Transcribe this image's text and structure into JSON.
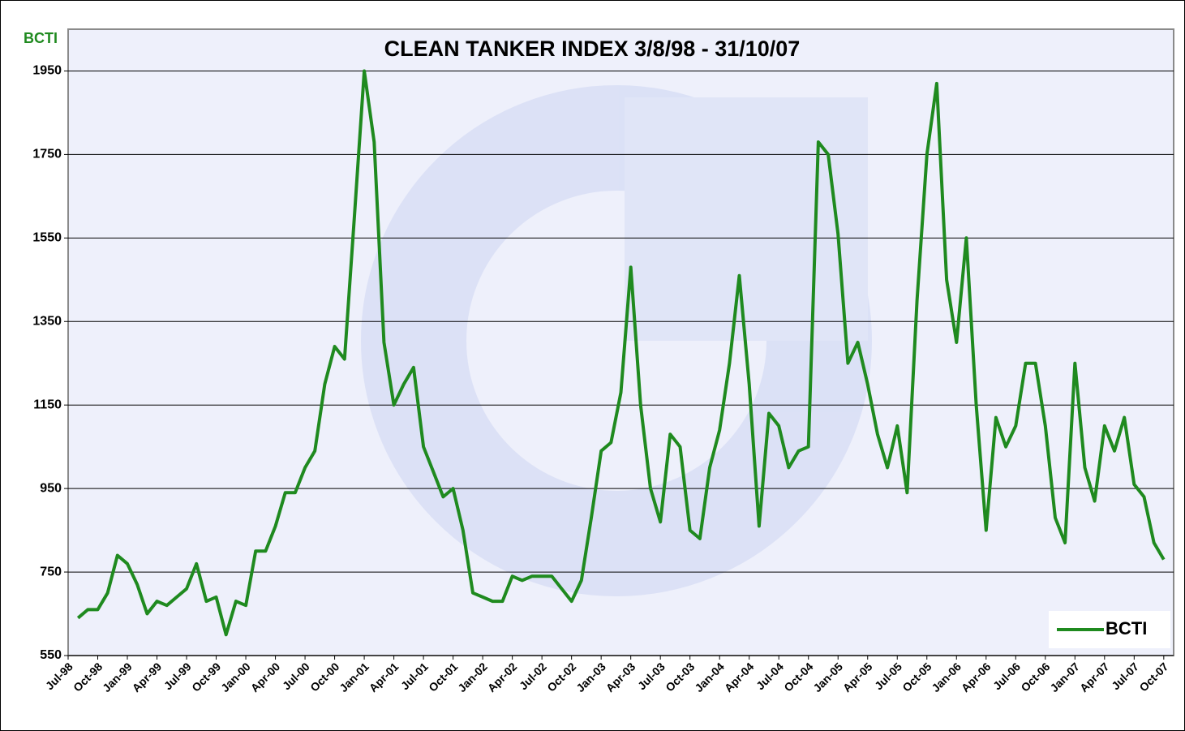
{
  "chart_data": {
    "type": "line",
    "title": "CLEAN TANKER INDEX 3/8/98 - 31/10/07",
    "ylabel": "BCTI",
    "x": [
      "Aug-98",
      "Sep-98",
      "Oct-98",
      "Nov-98",
      "Dec-98",
      "Jan-99",
      "Feb-99",
      "Mar-99",
      "Apr-99",
      "May-99",
      "Jun-99",
      "Jul-99",
      "Aug-99",
      "Sep-99",
      "Oct-99",
      "Nov-99",
      "Dec-99",
      "Jan-00",
      "Feb-00",
      "Mar-00",
      "Apr-00",
      "May-00",
      "Jun-00",
      "Jul-00",
      "Aug-00",
      "Sep-00",
      "Oct-00",
      "Nov-00",
      "Dec-00",
      "Jan-01",
      "Feb-01",
      "Mar-01",
      "Apr-01",
      "May-01",
      "Jun-01",
      "Jul-01",
      "Aug-01",
      "Sep-01",
      "Oct-01",
      "Nov-01",
      "Dec-01",
      "Jan-02",
      "Feb-02",
      "Mar-02",
      "Apr-02",
      "May-02",
      "Jun-02",
      "Jul-02",
      "Aug-02",
      "Sep-02",
      "Oct-02",
      "Nov-02",
      "Dec-02",
      "Jan-03",
      "Feb-03",
      "Mar-03",
      "Apr-03",
      "May-03",
      "Jun-03",
      "Jul-03",
      "Aug-03",
      "Sep-03",
      "Oct-03",
      "Nov-03",
      "Dec-03",
      "Jan-04",
      "Feb-04",
      "Mar-04",
      "Apr-04",
      "May-04",
      "Jun-04",
      "Jul-04",
      "Aug-04",
      "Sep-04",
      "Oct-04",
      "Nov-04",
      "Dec-04",
      "Jan-05",
      "Feb-05",
      "Mar-05",
      "Apr-05",
      "May-05",
      "Jun-05",
      "Jul-05",
      "Aug-05",
      "Sep-05",
      "Oct-05",
      "Nov-05",
      "Dec-05",
      "Jan-06",
      "Feb-06",
      "Mar-06",
      "Apr-06",
      "May-06",
      "Jun-06",
      "Jul-06",
      "Aug-06",
      "Sep-06",
      "Oct-06",
      "Nov-06",
      "Dec-06",
      "Jan-07",
      "Feb-07",
      "Mar-07",
      "Apr-07",
      "May-07",
      "Jun-07",
      "Jul-07",
      "Aug-07",
      "Sep-07",
      "Oct-07"
    ],
    "series": [
      {
        "name": "BCTI",
        "color": "#1f8a1f",
        "values": [
          640,
          660,
          660,
          700,
          790,
          770,
          720,
          650,
          680,
          670,
          690,
          710,
          770,
          680,
          690,
          600,
          680,
          670,
          800,
          800,
          860,
          940,
          940,
          1000,
          1040,
          1200,
          1290,
          1260,
          1600,
          1950,
          1780,
          1300,
          1150,
          1200,
          1240,
          1050,
          990,
          930,
          950,
          850,
          700,
          690,
          680,
          680,
          740,
          730,
          740,
          740,
          740,
          710,
          680,
          730,
          880,
          1040,
          1060,
          1180,
          1480,
          1150,
          950,
          870,
          1080,
          1050,
          850,
          830,
          1000,
          1090,
          1250,
          1460,
          1200,
          860,
          1130,
          1100,
          1000,
          1040,
          1050,
          1780,
          1750,
          1560,
          1250,
          1300,
          1200,
          1080,
          1000,
          1100,
          940,
          1400,
          1750,
          1920,
          1450,
          1300,
          1550,
          1150,
          850,
          1120,
          1050,
          1100,
          1250,
          1250,
          1100,
          880,
          820,
          1250,
          1000,
          920,
          1100,
          1040,
          1120,
          960,
          930,
          820,
          780
        ]
      }
    ],
    "xlim": [
      "Jul-98",
      "Nov-07"
    ],
    "xticks": [
      "Jul-98",
      "Oct-98",
      "Jan-99",
      "Apr-99",
      "Jul-99",
      "Oct-99",
      "Jan-00",
      "Apr-00",
      "Jul-00",
      "Oct-00",
      "Jan-01",
      "Apr-01",
      "Jul-01",
      "Oct-01",
      "Jan-02",
      "Apr-02",
      "Jul-02",
      "Oct-02",
      "Jan-03",
      "Apr-03",
      "Jul-03",
      "Oct-03",
      "Jan-04",
      "Apr-04",
      "Jul-04",
      "Oct-04",
      "Jan-05",
      "Apr-05",
      "Jul-05",
      "Oct-05",
      "Jan-06",
      "Apr-06",
      "Jul-06",
      "Oct-06",
      "Jan-07",
      "Apr-07",
      "Jul-07",
      "Oct-07"
    ],
    "ylim": [
      550,
      2050
    ],
    "yticks": [
      550,
      750,
      950,
      1150,
      1350,
      1550,
      1750,
      1950
    ],
    "grid": true,
    "legend": "lower right"
  }
}
